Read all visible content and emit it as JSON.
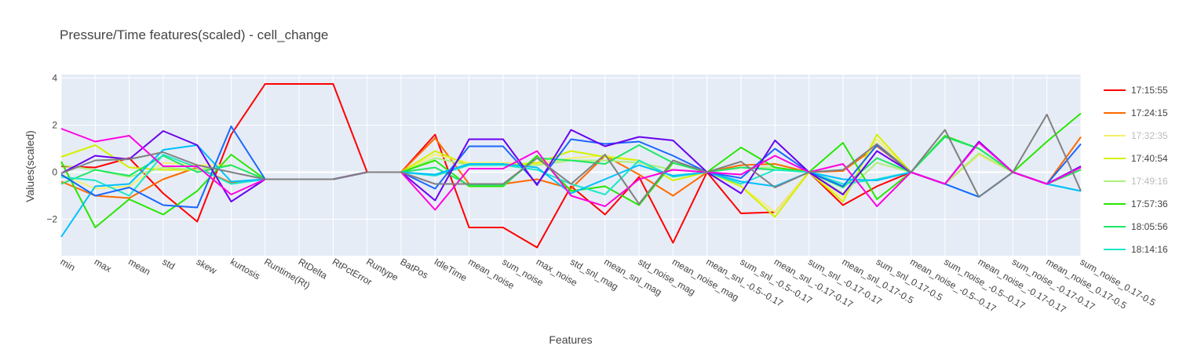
{
  "chart_data": {
    "type": "line",
    "title": "Pressure/Time features(scaled) - cell_change",
    "xlabel": "Features",
    "ylabel": "Values(scaled)",
    "ylim": [
      -3.55,
      4.15
    ],
    "yticks": [
      -2,
      0,
      2,
      4
    ],
    "grid": true,
    "legend_position": "right",
    "categories": [
      "min",
      "max",
      "mean",
      "std",
      "skew",
      "kurtosis",
      "Runtime(Rt)",
      "RtDelta",
      "RtPctError",
      "Runtype",
      "BatPos",
      "IdleTime",
      "mean_noise",
      "sum_noise",
      "max_noise",
      "std_snl_mag",
      "mean_snl_mag",
      "std_noise_mag",
      "mean_noise_mag",
      "mean_snl_-0.5--0.17",
      "sum_snl_-0.5--0.17",
      "mean_snl_-0.17-0.17",
      "sum_snl_-0.17-0.17",
      "mean_snl_0.17-0.5",
      "sum_snl_0.17-0.5",
      "mean_noise_-0.5--0.17",
      "sum_noise_-0.5--0.17",
      "mean_noise_-0.17-0.17",
      "sum_noise_-0.17-0.17",
      "mean_noise_0.17-0.5",
      "sum_noise_0.17-0.5"
    ],
    "series": [
      {
        "name": "17:15:55",
        "color": "#ff0000",
        "values": [
          0.25,
          0.2,
          0.6,
          -0.9,
          -2.1,
          1.6,
          3.75,
          3.75,
          3.75,
          0,
          0,
          1.6,
          -2.35,
          -2.35,
          -3.2,
          -0.6,
          -1.8,
          -0.2,
          -3.0,
          0,
          -1.75,
          -1.7,
          0,
          -1.4,
          -0.6,
          0,
          null,
          null,
          null,
          null,
          null
        ]
      },
      {
        "name": "17:24:15",
        "color": "#ff6a00",
        "values": [
          -0.4,
          -1.0,
          -1.1,
          -0.3,
          0.2,
          -0.45,
          -0.3,
          -0.3,
          -0.3,
          0,
          0,
          1.45,
          -0.5,
          -0.5,
          -0.3,
          -0.7,
          0.7,
          -0.1,
          -1.0,
          0,
          0.3,
          0.35,
          0,
          0.05,
          1.1,
          0,
          -0.5,
          0.75,
          0,
          -0.5,
          1.5
        ]
      },
      {
        "name": "17:32:35",
        "color": "#f5ef6e",
        "values": [
          -0.1,
          -0.7,
          -0.6,
          0.4,
          0.3,
          0.3,
          -0.3,
          -0.3,
          -0.3,
          0,
          0,
          0.75,
          0.4,
          0.4,
          0.35,
          0.6,
          0.7,
          0.5,
          -0.2,
          0,
          -0.6,
          -1.7,
          0,
          -1.1,
          1.4,
          0,
          -0.5,
          0.75,
          0,
          -0.5,
          -0.8
        ]
      },
      {
        "name": "17:40:54",
        "color": "#d5f000",
        "values": [
          0.65,
          1.15,
          0.2,
          0.1,
          0.1,
          0.3,
          -0.3,
          -0.3,
          -0.3,
          0,
          0,
          0.9,
          0.3,
          0.3,
          0.4,
          0.9,
          0.65,
          0.5,
          -0.35,
          0,
          -0.6,
          -1.9,
          0,
          -1.25,
          1.6,
          0,
          -0.5,
          0.8,
          0,
          -0.5,
          0.1
        ]
      },
      {
        "name": "17:49:16",
        "color": "#b0f07a",
        "values": [
          0.3,
          0.1,
          -0.2,
          0.2,
          0.1,
          0.3,
          -0.3,
          -0.3,
          -0.3,
          0,
          0,
          0.6,
          0.3,
          0.3,
          0.3,
          0.5,
          0.5,
          0.4,
          0.1,
          0,
          0.2,
          0.2,
          0,
          -0.9,
          0.4,
          0,
          -0.5,
          0.8,
          0,
          -0.5,
          0.2
        ]
      },
      {
        "name": "17:57:36",
        "color": "#28e600",
        "values": [
          0.45,
          -2.35,
          -1.15,
          -1.8,
          -0.8,
          0.75,
          -0.3,
          -0.3,
          -0.3,
          0,
          0,
          0.5,
          -0.6,
          -0.6,
          0.7,
          -0.8,
          -0.6,
          -1.4,
          0.4,
          0,
          1.05,
          0.2,
          0,
          1.25,
          -1.15,
          0,
          1.55,
          1.0,
          0,
          1.3,
          2.5
        ]
      },
      {
        "name": "18:05:56",
        "color": "#1ee664",
        "values": [
          -0.5,
          0.1,
          -0.15,
          0.7,
          0.0,
          0.3,
          -0.3,
          -0.3,
          -0.3,
          0,
          0,
          0.2,
          -0.55,
          -0.55,
          0.6,
          0.5,
          0.35,
          1.15,
          0.4,
          0,
          0.2,
          0.1,
          0,
          -0.65,
          0.6,
          0,
          1.5,
          1.0,
          0,
          -0.5,
          0.1
        ]
      },
      {
        "name": "18:14:16",
        "color": "#1ee6c8",
        "values": [
          -0.2,
          -0.35,
          -1.0,
          0.75,
          0.2,
          -0.5,
          -0.3,
          -0.3,
          -0.3,
          0,
          0,
          -0.15,
          0.3,
          0.3,
          0.1,
          -0.5,
          -0.95,
          0.5,
          -0.2,
          0,
          -0.5,
          0.1,
          0,
          -0.5,
          -0.3,
          0,
          -0.5,
          -1.05,
          0,
          -0.5,
          -0.8
        ]
      },
      {
        "name": "",
        "color": "#00bfff",
        "values": [
          -2.75,
          -0.6,
          -0.5,
          0.95,
          1.15,
          -0.4,
          -0.3,
          -0.3,
          -0.3,
          0,
          0,
          -0.1,
          0.35,
          0.35,
          0.2,
          -0.9,
          -0.3,
          0.3,
          -0.15,
          0,
          -0.4,
          -0.6,
          0,
          -0.3,
          -0.35,
          0,
          -0.5,
          -1.05,
          0,
          -0.5,
          -0.8
        ]
      },
      {
        "name": "",
        "color": "#1a66ff",
        "values": [
          -0.1,
          -1.0,
          -0.65,
          -1.4,
          -1.5,
          1.95,
          -0.3,
          -0.3,
          -0.3,
          0,
          0,
          -0.7,
          1.1,
          1.1,
          -0.5,
          1.4,
          1.2,
          1.3,
          0.7,
          0,
          -0.25,
          1.0,
          0,
          -0.6,
          1.15,
          0,
          -0.5,
          -1.05,
          0,
          -0.5,
          1.2
        ]
      },
      {
        "name": "",
        "color": "#6a00f0",
        "values": [
          -0.05,
          0.7,
          0.55,
          1.75,
          1.15,
          -1.25,
          -0.3,
          -0.3,
          -0.3,
          0,
          0,
          -1.2,
          1.4,
          1.4,
          -0.55,
          1.8,
          1.1,
          1.5,
          1.35,
          0,
          -0.9,
          1.35,
          0,
          -0.95,
          0.9,
          0,
          -0.5,
          1.3,
          0,
          -0.5,
          0.25
        ]
      },
      {
        "name": "",
        "color": "#ff00e0",
        "values": [
          1.85,
          1.3,
          1.55,
          0.25,
          0.25,
          -0.95,
          -0.3,
          -0.3,
          -0.3,
          0,
          0,
          -1.6,
          0.15,
          0.15,
          0.9,
          -1.0,
          -1.45,
          -0.3,
          0.1,
          0,
          -0.1,
          0.7,
          0,
          0.35,
          -1.45,
          0,
          -0.5,
          1.25,
          0,
          -0.5,
          0.2
        ]
      },
      {
        "name": "",
        "color": "#808080",
        "values": [
          -0.05,
          0.5,
          0.55,
          0.85,
          0.3,
          0.0,
          -0.3,
          -0.3,
          -0.3,
          0,
          0,
          -0.5,
          -0.5,
          -0.5,
          0.6,
          -0.5,
          0.75,
          -1.35,
          0.5,
          0,
          0.45,
          -0.65,
          0,
          0.1,
          1.2,
          0,
          1.8,
          -1.05,
          0,
          2.45,
          -0.8
        ]
      }
    ]
  }
}
